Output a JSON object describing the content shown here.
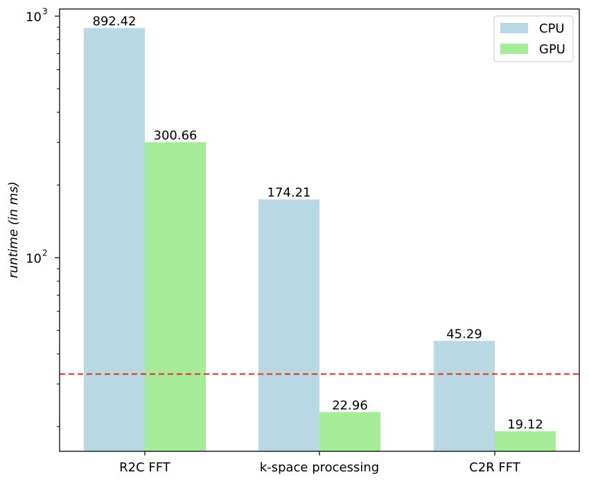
{
  "chart_data": {
    "type": "bar",
    "categories": [
      "R2C FFT",
      "k-space processing",
      "C2R FFT"
    ],
    "series": [
      {
        "name": "CPU",
        "color": "#b8d8e4",
        "values": [
          892.42,
          174.21,
          45.29
        ],
        "labels": [
          "892.42",
          "174.21",
          "45.29"
        ]
      },
      {
        "name": "GPU",
        "color": "#a6eb98",
        "values": [
          300.66,
          22.96,
          19.12
        ],
        "labels": [
          "300.66",
          "22.96",
          "19.12"
        ]
      }
    ],
    "ylabel": "runtime (in ms)",
    "yscale": "log",
    "ylim": [
      15.8,
      1070
    ],
    "yticks": [
      {
        "value": 100,
        "base": "10",
        "exp": "2"
      },
      {
        "value": 1000,
        "base": "10",
        "exp": "3"
      }
    ],
    "reference_line": {
      "value": 33,
      "color": "#e03c31",
      "style": "dashed"
    },
    "legend": {
      "position": "top-right"
    }
  }
}
